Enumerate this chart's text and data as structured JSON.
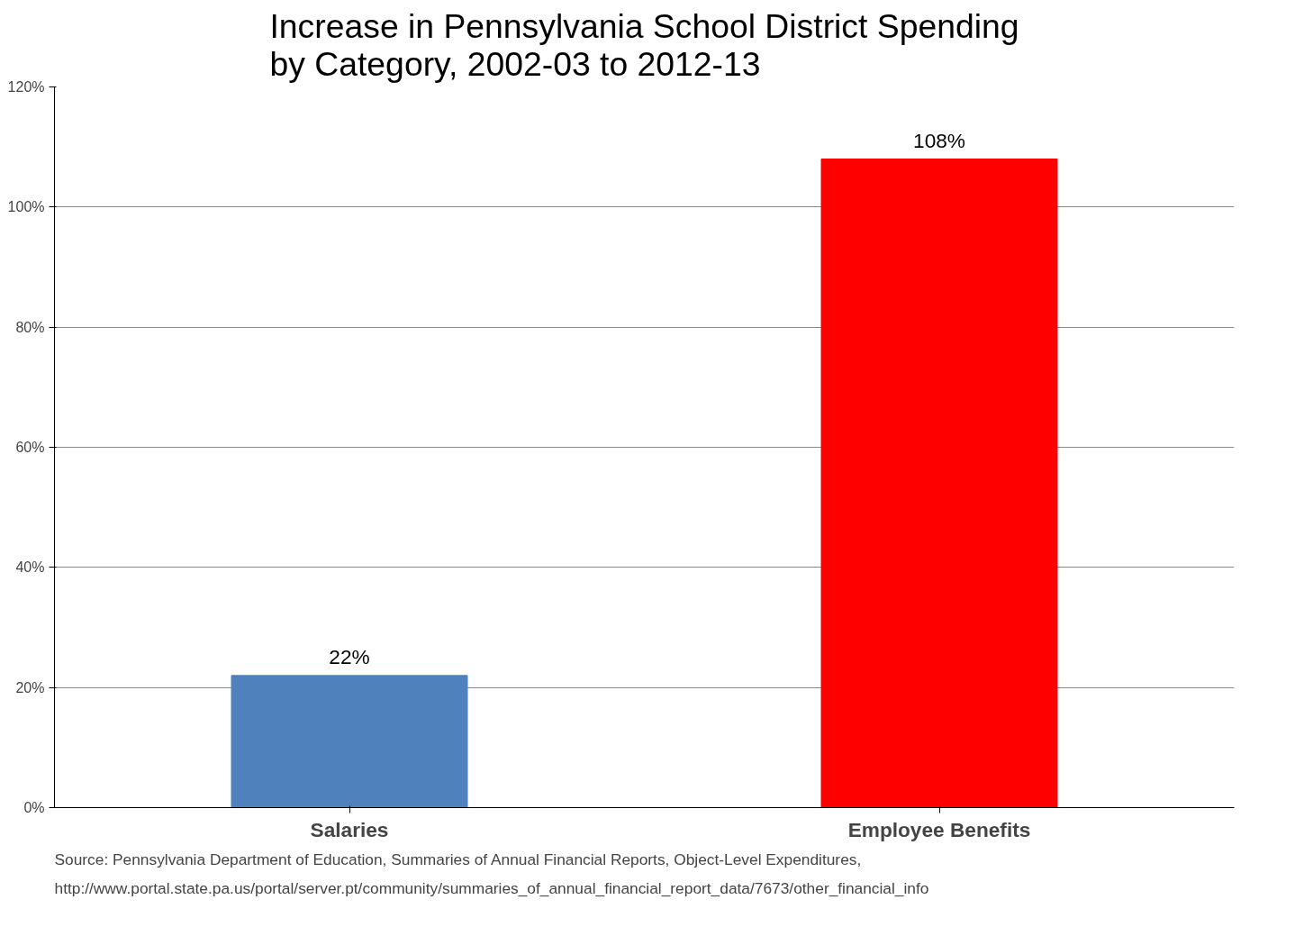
{
  "chart_data": {
    "type": "bar",
    "title": "Increase in Pennsylvania School District Spending\nby Category, 2002-03 to 2012-13",
    "categories": [
      "Salaries",
      "Employee Benefits"
    ],
    "values": [
      22,
      108
    ],
    "colors": [
      "#4f81bd",
      "#ff0000"
    ],
    "value_labels": [
      "22%",
      "108%"
    ],
    "ylim": [
      0,
      120
    ],
    "yticks": [
      {
        "value": 0,
        "label": "0%"
      },
      {
        "value": 20,
        "label": "20%"
      },
      {
        "value": 40,
        "label": "40%"
      },
      {
        "value": 60,
        "label": "60%"
      },
      {
        "value": 80,
        "label": "80%"
      },
      {
        "value": 100,
        "label": "100%"
      },
      {
        "value": 120,
        "label": "120%"
      }
    ],
    "grid": "y",
    "annotations": [
      "Source: Pennsylvania Department of Education, Summaries of Annual Financial Reports, Object-Level Expenditures,",
      "http://www.portal.state.pa.us/portal/server.pt/community/summaries_of_annual_financial_report_data/7673/other_financial_info"
    ]
  }
}
